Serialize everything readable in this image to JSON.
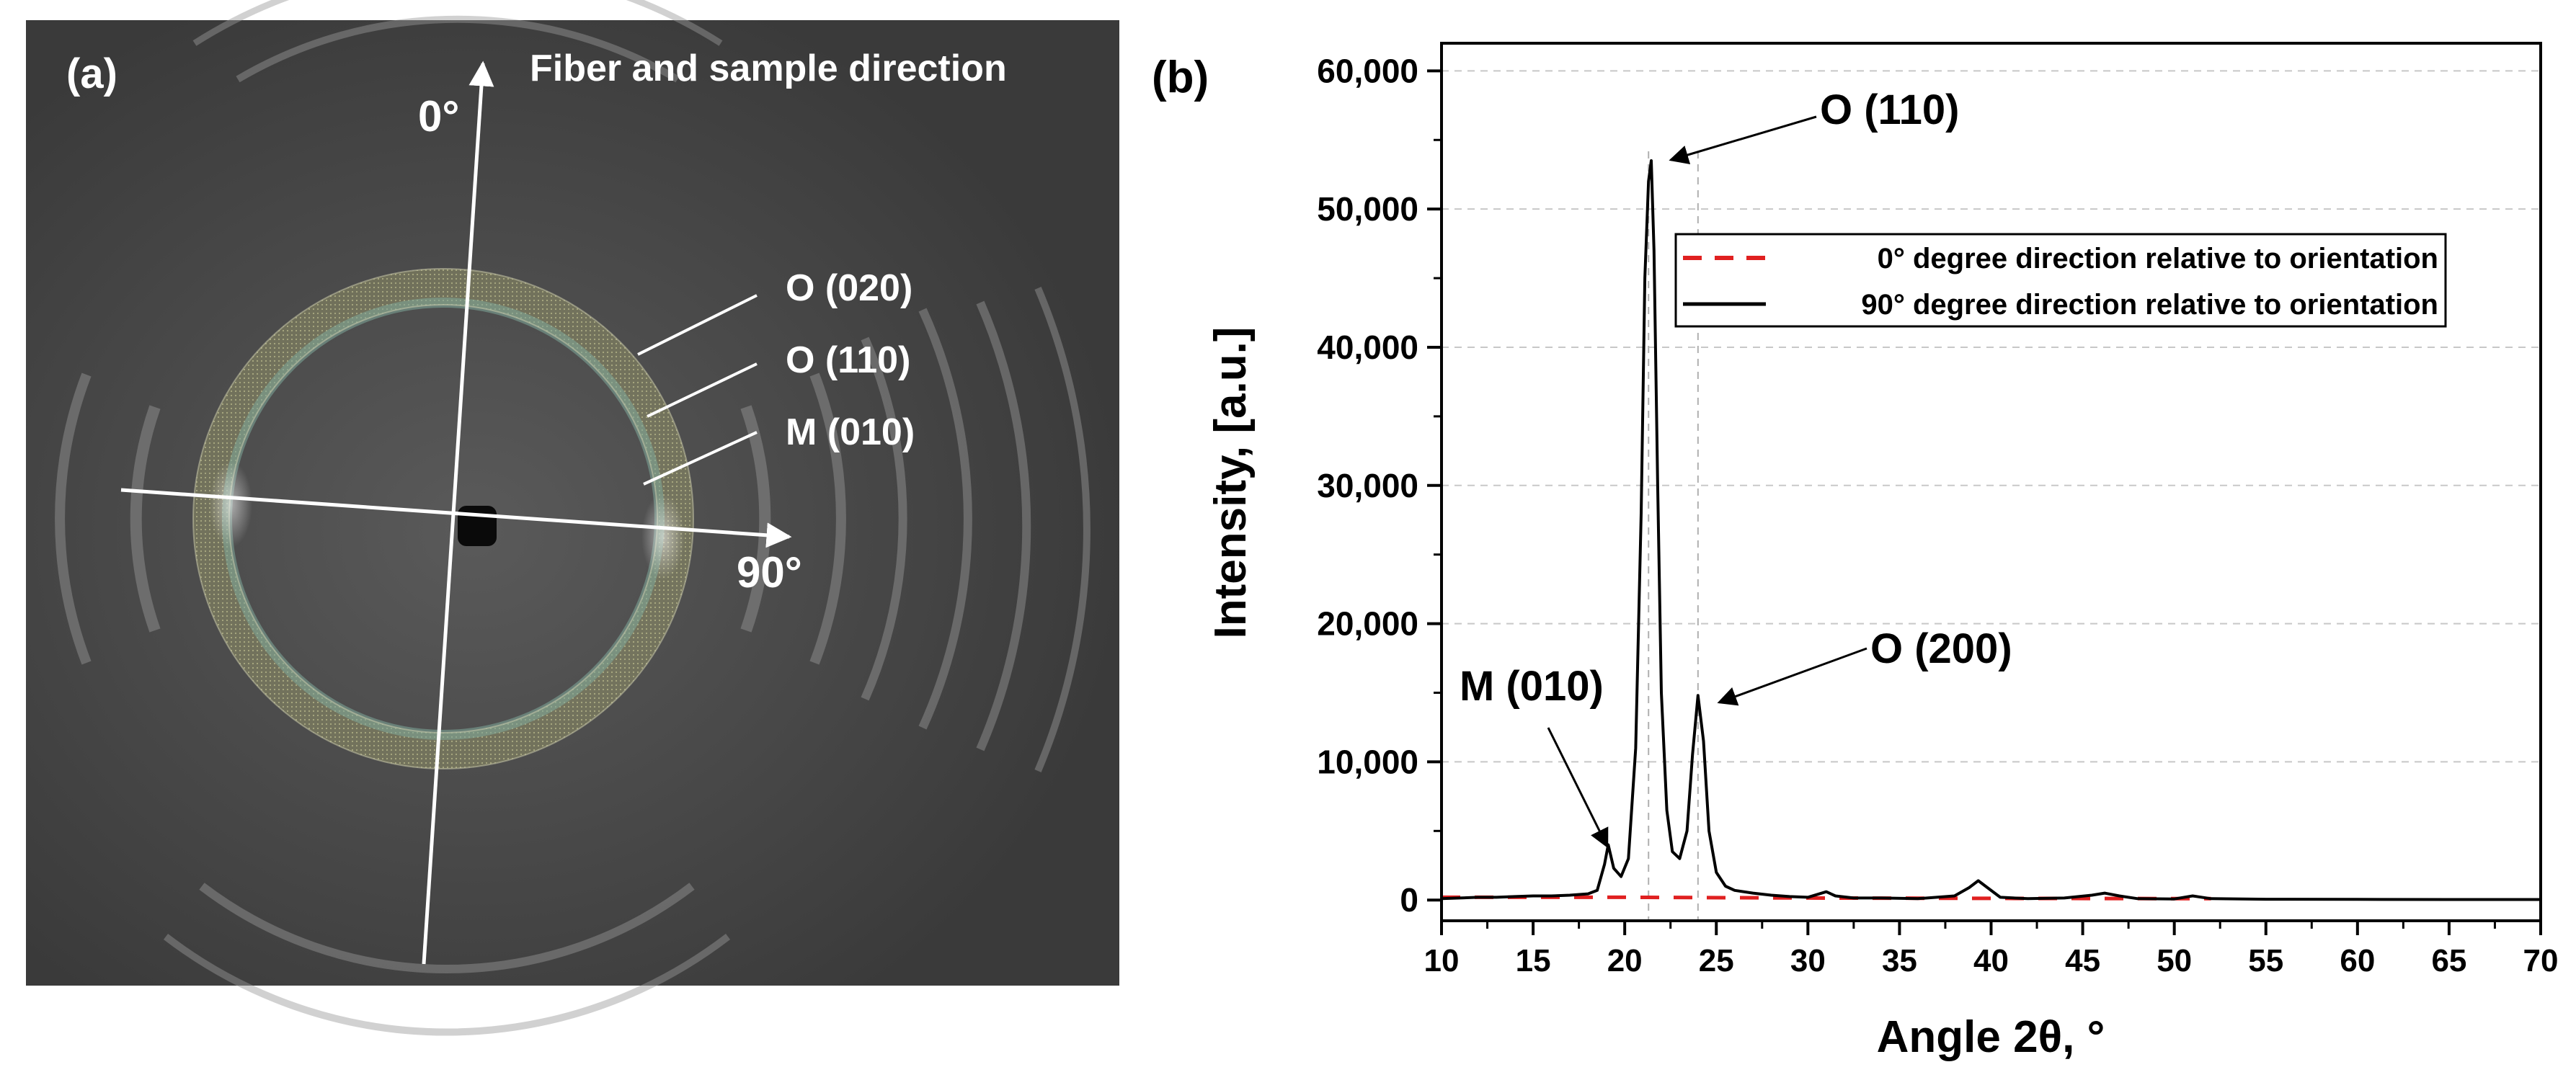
{
  "panel_a": {
    "label": "(a)",
    "header": "Fiber and sample direction",
    "axis_0_label": "0°",
    "axis_90_label": "90°",
    "ring_labels": [
      "O (020)",
      "O (110)",
      "M (010)"
    ]
  },
  "panel_b": {
    "label": "(b)"
  },
  "colors": {
    "zero_deg": "#e02020",
    "ninety_deg": "#000000",
    "pattern_bg": "#4a4a4a",
    "ring_overlay": "#b8b878"
  },
  "chart_data": {
    "type": "line",
    "xlabel": "Angle 2θ, °",
    "ylabel": "Intensity, [a.u.]",
    "xlim": [
      10,
      70
    ],
    "ylim": [
      -1500,
      62000
    ],
    "x_ticks": [
      10,
      15,
      20,
      25,
      30,
      35,
      40,
      45,
      50,
      55,
      60,
      65,
      70
    ],
    "y_ticks": [
      0,
      10000,
      20000,
      30000,
      40000,
      50000,
      60000
    ],
    "y_tick_labels": [
      "0",
      "10,000",
      "20,000",
      "30,000",
      "40,000",
      "50,000",
      "60,000"
    ],
    "grid": "horizontal dashed",
    "legend_position": "upper-right",
    "series": [
      {
        "name": "0° degree direction relative to orientation",
        "style": "dashed",
        "color": "#e02020",
        "x": [
          10,
          20,
          30,
          40,
          52
        ],
        "y": [
          200,
          200,
          150,
          120,
          100
        ]
      },
      {
        "name": "90° degree direction relative to orientation",
        "style": "solid",
        "color": "#000000",
        "x": [
          10,
          11,
          12,
          13,
          14,
          15,
          16,
          17,
          18,
          18.5,
          18.9,
          19.1,
          19.4,
          19.8,
          20.2,
          20.6,
          20.9,
          21.1,
          21.3,
          21.45,
          21.6,
          21.8,
          22.0,
          22.3,
          22.6,
          23.0,
          23.4,
          23.7,
          24.0,
          24.3,
          24.6,
          25.0,
          25.5,
          26.0,
          27.0,
          28.0,
          29.0,
          30.0,
          31.0,
          31.5,
          32.5,
          34.0,
          36.0,
          38.0,
          38.8,
          39.3,
          39.8,
          40.5,
          42.0,
          44.0,
          45.5,
          46.2,
          47.0,
          48.0,
          50.0,
          51.0,
          52.0,
          55.0,
          60.0,
          65.0,
          70.0
        ],
        "y": [
          100,
          150,
          200,
          200,
          250,
          300,
          300,
          350,
          450,
          700,
          2600,
          4000,
          2300,
          1700,
          3000,
          11000,
          28000,
          45000,
          52000,
          53500,
          47000,
          30000,
          15000,
          6500,
          3500,
          3000,
          5000,
          10500,
          14800,
          11500,
          5000,
          2000,
          1000,
          700,
          500,
          350,
          250,
          200,
          600,
          300,
          150,
          150,
          100,
          300,
          900,
          1400,
          900,
          200,
          100,
          150,
          350,
          500,
          300,
          100,
          80,
          300,
          100,
          60,
          50,
          40,
          40
        ]
      }
    ],
    "annotations": [
      {
        "text": "O (110)",
        "x": 21.4,
        "y": 53500
      },
      {
        "text": "O (200)",
        "x": 24.1,
        "y": 15000
      },
      {
        "text": "M (010)",
        "x": 19.1,
        "y": 4000
      }
    ],
    "reference_lines_x": [
      21.3,
      24.0
    ]
  }
}
